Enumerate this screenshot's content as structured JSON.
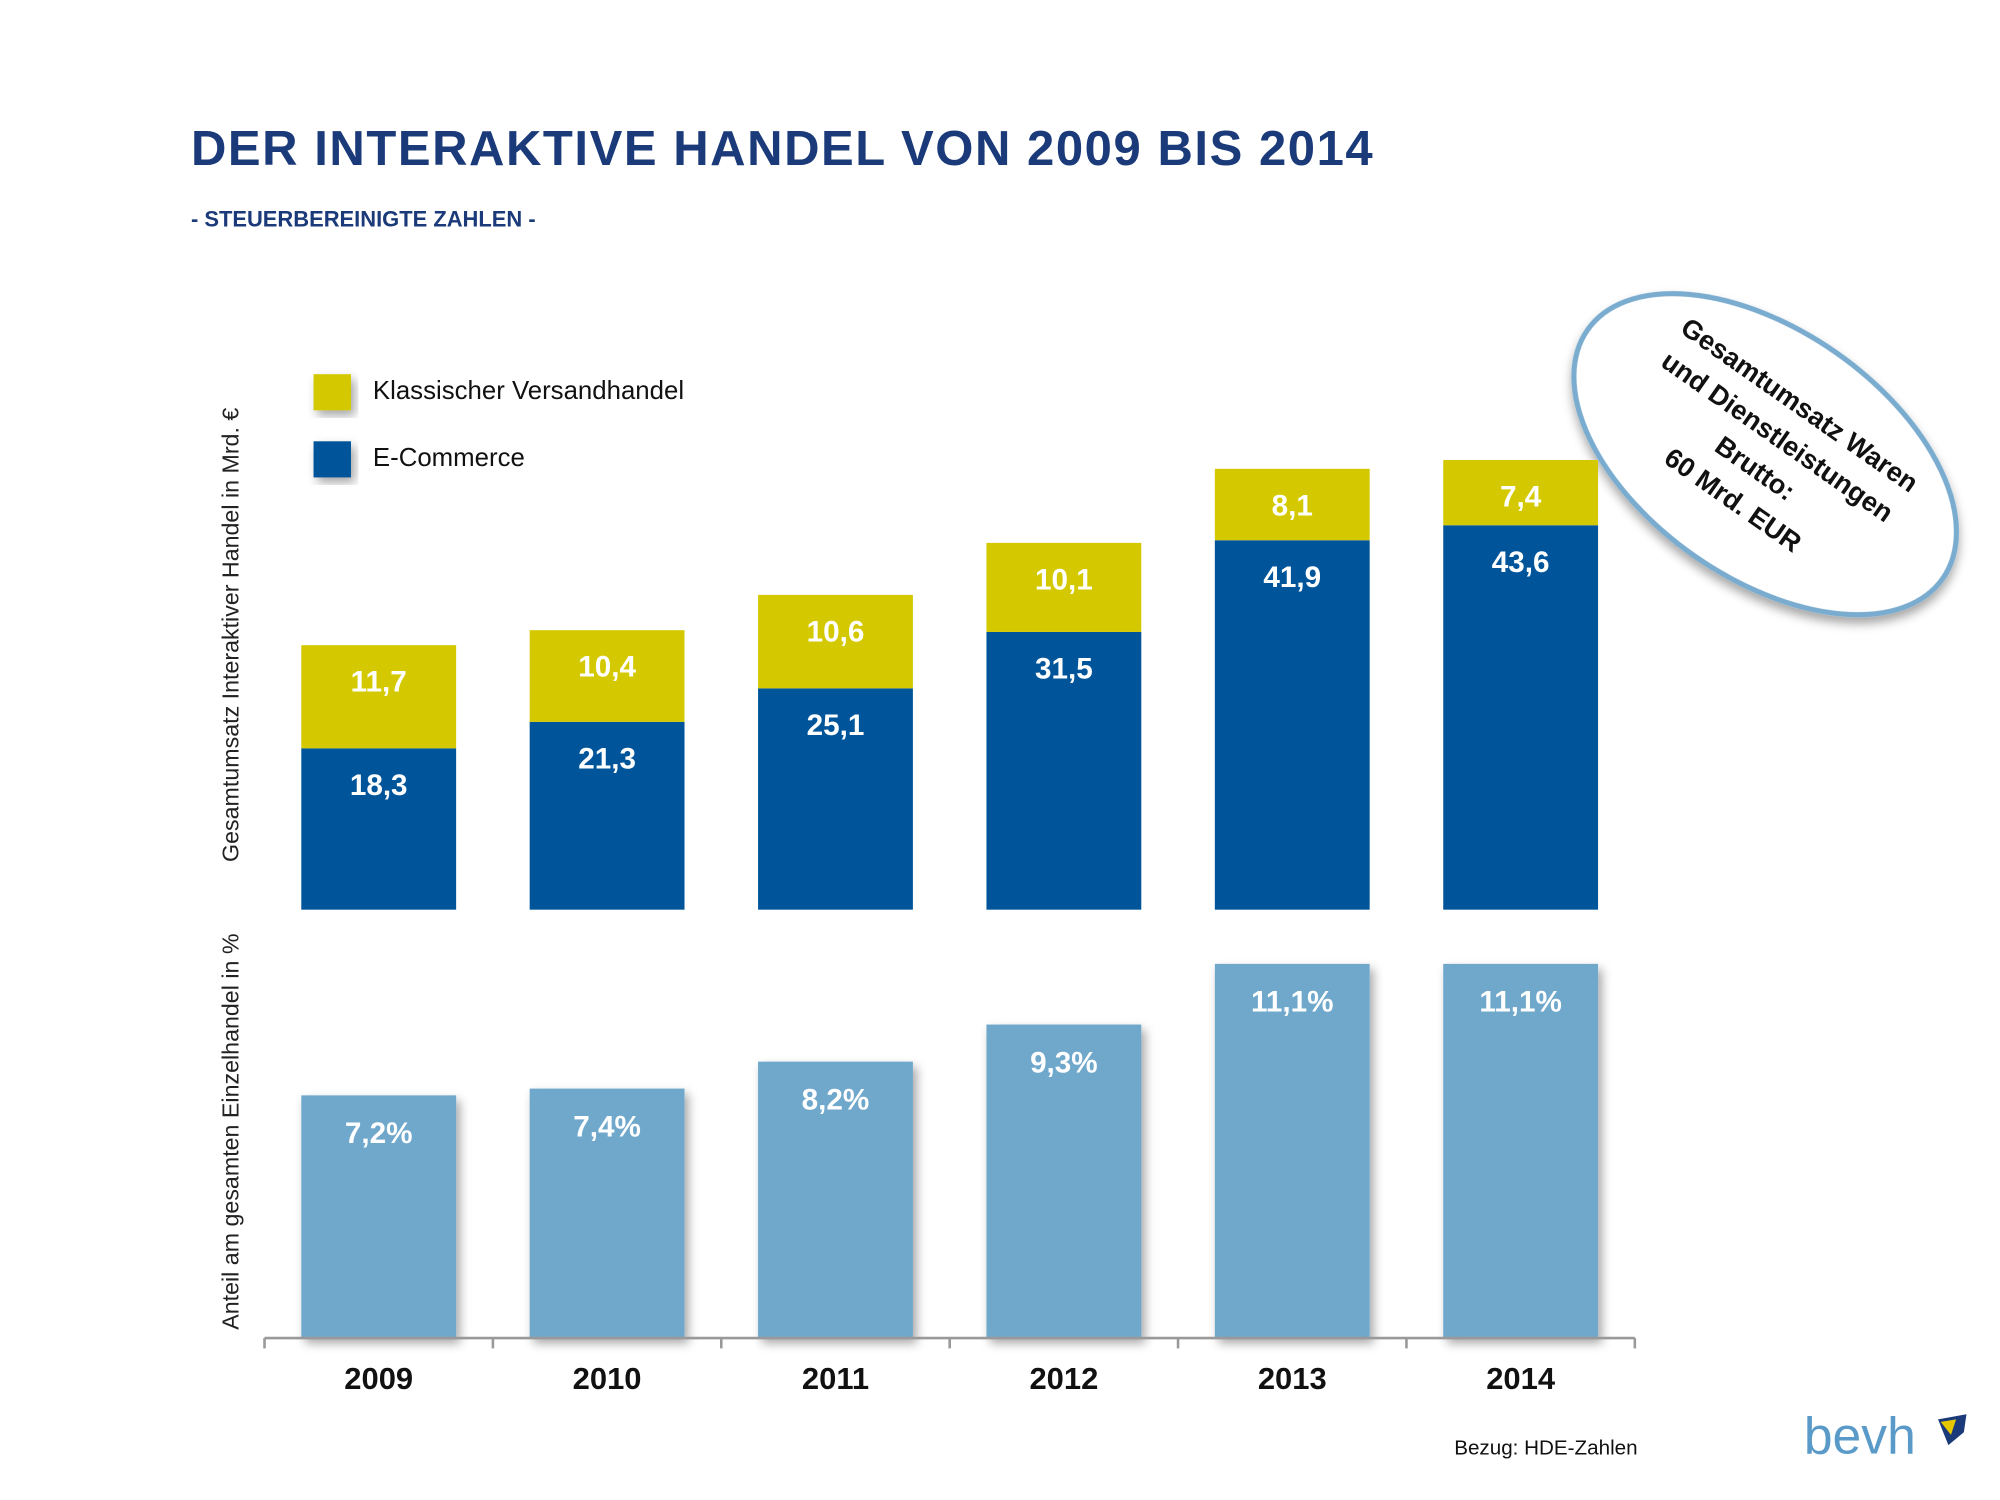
{
  "title": "DER INTERAKTIVE HANDEL VON 2009 BIS 2014",
  "subtitle": "- STEUERBEREINIGTE ZAHLEN -",
  "source": "Bezug: HDE-Zahlen",
  "logo": "bevh",
  "chart_data": [
    {
      "type": "stacked_bar",
      "y_label": "Gesamtumsatz Interaktiver Handel in Mrd. €",
      "ylim": [
        0,
        60
      ],
      "series": [
        {
          "name": "Klassischer Versandhandel",
          "color": "#d4c900",
          "values": [
            11.7,
            10.4,
            10.6,
            10.1,
            8.1,
            7.4
          ],
          "value_labels": [
            "11,7",
            "10,4",
            "10,6",
            "10,1",
            "8,1",
            "7,4"
          ]
        },
        {
          "name": "E-Commerce",
          "color": "#00559a",
          "values": [
            18.3,
            21.3,
            25.1,
            31.5,
            41.9,
            43.6
          ],
          "value_labels": [
            "18,3",
            "21,3",
            "25,1",
            "31,5",
            "41,9",
            "43,6"
          ]
        }
      ],
      "annotation": [
        "Gesamtumsatz Waren",
        "und Dienstleistungen",
        "Brutto:",
        "60 Mrd. EUR"
      ]
    },
    {
      "type": "bar",
      "y_label": "Anteil am gesamten Einzelhandel in %",
      "categories": [
        "2009",
        "2010",
        "2011",
        "2012",
        "2013",
        "2014"
      ],
      "ylim": [
        0,
        12
      ],
      "color": "#70a8cc",
      "values": [
        7.2,
        7.4,
        8.2,
        9.3,
        11.1,
        11.1
      ],
      "value_labels": [
        "7,2%",
        "7,4%",
        "8,2%",
        "9,3%",
        "11,1%",
        "11,1%"
      ]
    }
  ]
}
